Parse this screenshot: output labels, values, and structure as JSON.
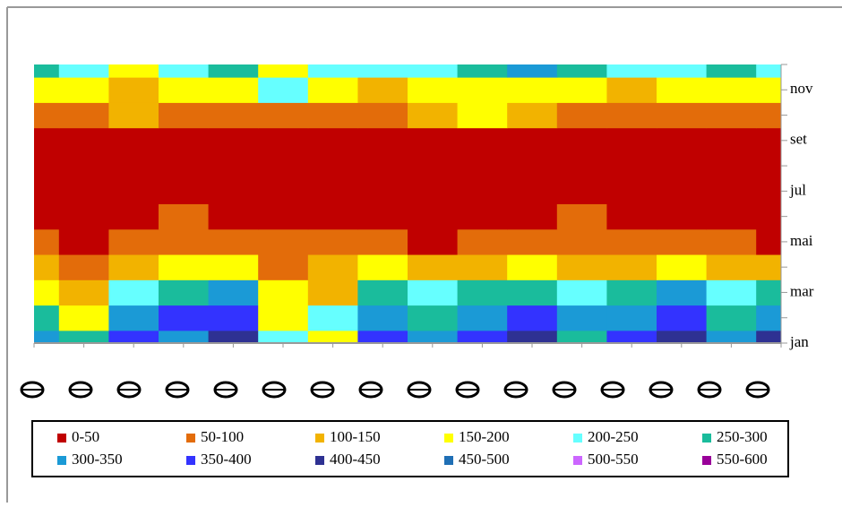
{
  "chart_data": {
    "type": "surface",
    "y_categories": [
      "jan",
      null,
      "mar",
      null,
      "mai",
      null,
      "jul",
      null,
      "set",
      null,
      "nov",
      null
    ],
    "x_categories": [
      null,
      null,
      null,
      null,
      null,
      null,
      null,
      null,
      null,
      null,
      null,
      null,
      null,
      null,
      null,
      null
    ],
    "z": [
      [
        320,
        280,
        380,
        300,
        420,
        200,
        150,
        380,
        300,
        350,
        420,
        250,
        380,
        420,
        300,
        400
      ],
      [
        250,
        180,
        300,
        350,
        380,
        160,
        200,
        300,
        280,
        320,
        350,
        300,
        320,
        380,
        260,
        320
      ],
      [
        150,
        120,
        200,
        250,
        300,
        150,
        120,
        250,
        200,
        250,
        280,
        200,
        250,
        300,
        220,
        250
      ],
      [
        100,
        80,
        120,
        150,
        180,
        90,
        100,
        150,
        110,
        120,
        150,
        110,
        130,
        160,
        120,
        110
      ],
      [
        60,
        40,
        70,
        90,
        80,
        60,
        80,
        60,
        40,
        60,
        70,
        50,
        80,
        70,
        60,
        40
      ],
      [
        30,
        30,
        40,
        50,
        30,
        40,
        30,
        30,
        30,
        40,
        30,
        90,
        30,
        40,
        30,
        30
      ],
      [
        20,
        20,
        30,
        20,
        20,
        20,
        20,
        20,
        20,
        20,
        20,
        20,
        20,
        20,
        20,
        20
      ],
      [
        20,
        20,
        20,
        20,
        20,
        20,
        20,
        20,
        20,
        20,
        20,
        20,
        20,
        20,
        20,
        20
      ],
      [
        40,
        30,
        40,
        40,
        30,
        40,
        40,
        30,
        40,
        40,
        30,
        40,
        30,
        30,
        30,
        40
      ],
      [
        80,
        70,
        120,
        90,
        60,
        80,
        90,
        60,
        110,
        150,
        120,
        90,
        70,
        60,
        70,
        80
      ],
      [
        150,
        160,
        140,
        180,
        160,
        200,
        150,
        130,
        180,
        190,
        160,
        170,
        140,
        150,
        160,
        150
      ],
      [
        250,
        200,
        180,
        200,
        260,
        150,
        200,
        220,
        200,
        260,
        300,
        280,
        220,
        240,
        260,
        230
      ]
    ],
    "legend": [
      {
        "name": "0-50",
        "color": "#c00000",
        "range": [
          0,
          50
        ]
      },
      {
        "name": "50-100",
        "color": "#e36c0a",
        "range": [
          50,
          100
        ]
      },
      {
        "name": "100-150",
        "color": "#f2b300",
        "range": [
          100,
          150
        ]
      },
      {
        "name": "150-200",
        "color": "#ffff00",
        "range": [
          150,
          200
        ]
      },
      {
        "name": "200-250",
        "color": "#66ffff",
        "range": [
          200,
          250
        ]
      },
      {
        "name": "250-300",
        "color": "#1abc9c",
        "range": [
          250,
          300
        ]
      },
      {
        "name": "300-350",
        "color": "#1b9ad6",
        "range": [
          300,
          350
        ]
      },
      {
        "name": "350-400",
        "color": "#3333ff",
        "range": [
          350,
          400
        ]
      },
      {
        "name": "400-450",
        "color": "#2e3192",
        "range": [
          400,
          450
        ]
      },
      {
        "name": "450-500",
        "color": "#1f6fb5",
        "range": [
          450,
          500
        ]
      },
      {
        "name": "500-550",
        "color": "#cc66ff",
        "range": [
          500,
          550
        ]
      },
      {
        "name": "550-600",
        "color": "#990099",
        "range": [
          550,
          600
        ]
      }
    ]
  }
}
